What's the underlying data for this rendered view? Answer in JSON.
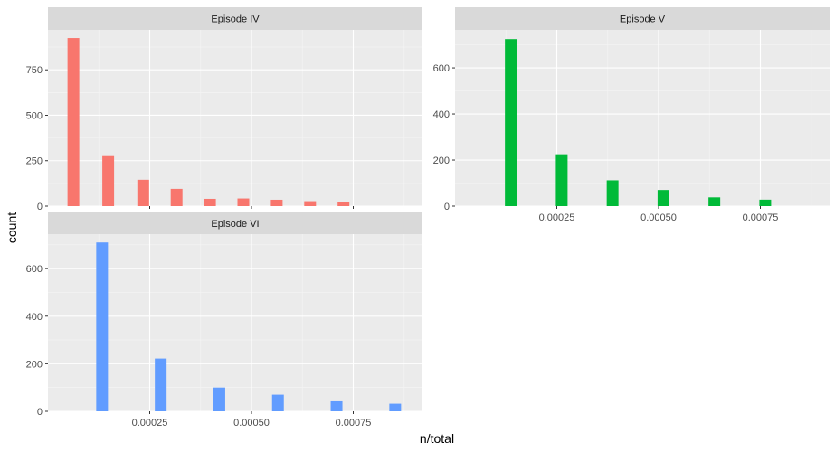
{
  "chart_data": {
    "type": "bar",
    "xlabel": "n/total",
    "ylabel": "count",
    "grid": true,
    "legend": "none",
    "xlim": [
      0.0,
      0.00092
    ],
    "x_ticks": [
      0.00025,
      0.0005,
      0.00075
    ],
    "x_tick_labels": [
      "0.00025",
      "0.00050",
      "0.00075"
    ],
    "panels": [
      {
        "title": "Episode IV",
        "color": "#F8766D",
        "ylim": [
          0,
          970
        ],
        "y_ticks": [
          0,
          250,
          500,
          750
        ],
        "y_tick_labels": [
          "0",
          "250",
          "500",
          "750"
        ],
        "x_tick_labels_visible": false,
        "x": [
          6.25e-05,
          0.000148,
          0.000234,
          0.000316,
          0.000398,
          0.00048,
          0.000562,
          0.000644,
          0.000726
        ],
        "values": [
          925,
          275,
          145,
          95,
          40,
          42,
          35,
          27,
          22
        ]
      },
      {
        "title": "Episode V",
        "color": "#00BA38",
        "ylim": [
          0,
          765
        ],
        "y_ticks": [
          0,
          200,
          400,
          600
        ],
        "y_tick_labels": [
          "0",
          "200",
          "400",
          "600"
        ],
        "x_tick_labels_visible": true,
        "x": [
          0.000137,
          0.000262,
          0.000387,
          0.000512,
          0.000637,
          0.000762
        ],
        "values": [
          725,
          225,
          112,
          70,
          38,
          28
        ]
      },
      {
        "title": "Episode VI",
        "color": "#619CFF",
        "ylim": [
          0,
          745
        ],
        "y_ticks": [
          0,
          200,
          400,
          600
        ],
        "y_tick_labels": [
          "0",
          "200",
          "400",
          "600"
        ],
        "x_tick_labels_visible": true,
        "x": [
          0.000133,
          0.000277,
          0.000421,
          0.000565,
          0.000709,
          0.000853
        ],
        "values": [
          710,
          222,
          100,
          70,
          42,
          32
        ]
      }
    ]
  }
}
